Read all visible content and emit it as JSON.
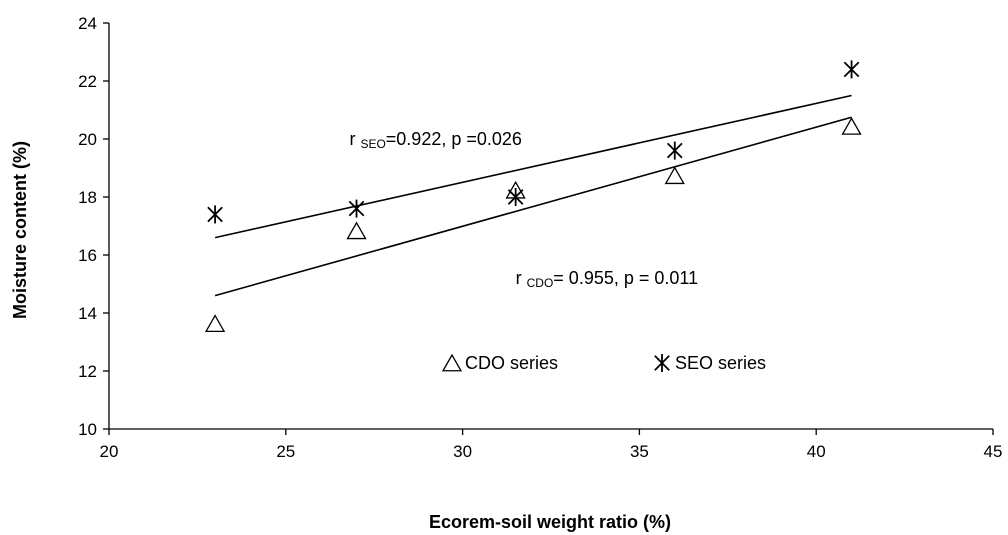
{
  "chart_data": {
    "type": "scatter",
    "xlabel": "Ecorem-soil  weight ratio  (%)",
    "ylabel": "Moisture content (%)",
    "xlim": [
      20,
      45
    ],
    "ylim": [
      10,
      24
    ],
    "xticks": [
      20,
      25,
      30,
      35,
      40,
      45
    ],
    "yticks": [
      10,
      12,
      14,
      16,
      18,
      20,
      22,
      24
    ],
    "grid": false,
    "legend_position": "bottom-center",
    "series": [
      {
        "name": "CDO series",
        "marker": "triangle",
        "x": [
          23,
          27,
          31.5,
          36,
          41
        ],
        "y": [
          13.6,
          16.8,
          18.2,
          18.7,
          20.4
        ],
        "trendline": {
          "x": [
            23,
            41
          ],
          "y": [
            14.6,
            20.75
          ]
        }
      },
      {
        "name": "SEO series",
        "marker": "asterisk",
        "x": [
          23,
          27,
          31.5,
          36,
          41
        ],
        "y": [
          17.4,
          17.6,
          18.0,
          19.6,
          22.4
        ],
        "trendline": {
          "x": [
            23,
            41
          ],
          "y": [
            16.6,
            21.5
          ]
        }
      }
    ],
    "annotations": [
      {
        "id": "seo",
        "prefix": "r ",
        "sub": "SEO",
        "rest": "=0.922, p =0.026",
        "x": 26.8,
        "y": 19.8
      },
      {
        "id": "cdo",
        "prefix": "r ",
        "sub": "CDO",
        "rest": "= 0.955, p = 0.011",
        "x": 31.5,
        "y": 15.0
      }
    ]
  }
}
